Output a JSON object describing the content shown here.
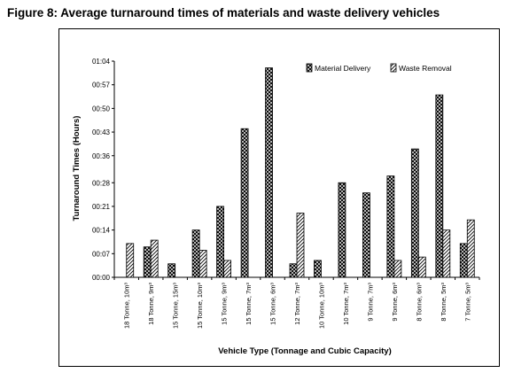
{
  "figure_title": "Figure 8:  Average turnaround times of materials and waste delivery vehicles",
  "chart_data": {
    "type": "bar",
    "title": "Figure 8:  Average turnaround times of materials and waste delivery vehicles",
    "xlabel": "Vehicle Type (Tonnage and Cubic Capacity)",
    "ylabel": "Turnaround Times (Hours)",
    "y_unit": "h:mm",
    "ylim": [
      "00:00",
      "01:04"
    ],
    "y_ticks": [
      "00:00",
      "00:07",
      "00:14",
      "00:21",
      "00:28",
      "00:36",
      "00:43",
      "00:50",
      "00:57",
      "01:04"
    ],
    "grid": false,
    "legend_position": "top-right",
    "categories": [
      "18 Tonne, 10m³",
      "18 Tonne, 9m³",
      "15 Tonne, 15m³",
      "15 Tonne, 10m³",
      "15 Tonne, 9m³",
      "15 Tonne, 7m³",
      "15 Tonne, 6m³",
      "12 Tonne, 7m³",
      "10 Tonne, 10m³",
      "10 Tonne, 7m³",
      "9 Tonne, 7m³",
      "9 Tonne, 6m³",
      "8 Tonne, 6m³",
      "8 Tonne, 5m³",
      "7 Tonne, 5m³"
    ],
    "series": [
      {
        "name": "Material Delivery",
        "pattern": "crosshatch",
        "values": [
          0,
          9,
          4,
          14,
          21,
          44,
          62,
          4,
          5,
          28,
          25,
          30,
          38,
          54,
          10
        ]
      },
      {
        "name": "Waste Removal",
        "pattern": "diagonal",
        "values": [
          10,
          11,
          0,
          8,
          5,
          0,
          0,
          19,
          0,
          0,
          0,
          5,
          6,
          14,
          17
        ]
      }
    ]
  }
}
